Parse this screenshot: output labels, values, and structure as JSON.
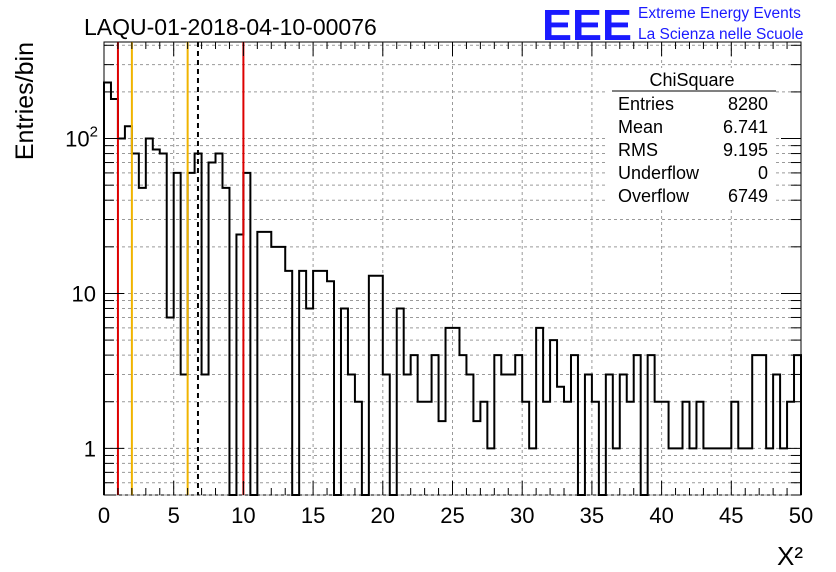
{
  "chart_data": {
    "type": "bar",
    "title": "LAQU-01-2018-04-10-00076",
    "xlabel": "X²",
    "ylabel": "Entries/bin",
    "xlim": [
      0,
      50
    ],
    "ylim": [
      0.5,
      420
    ],
    "y_scale": "log",
    "grid": true,
    "bin_width": 0.5,
    "x_ticks": [
      "0",
      "5",
      "10",
      "15",
      "20",
      "25",
      "30",
      "35",
      "40",
      "45",
      "50"
    ],
    "y_ticks": [
      {
        "value": 1,
        "label": "1"
      },
      {
        "value": 10,
        "label": "10"
      },
      {
        "value": 100,
        "label": "10",
        "sup": "2"
      }
    ],
    "values": [
      230,
      180,
      100,
      120,
      80,
      48,
      100,
      85,
      80,
      7,
      60,
      3,
      60,
      80,
      3,
      70,
      80,
      48,
      0,
      24,
      60,
      0,
      25,
      25,
      20,
      20,
      14,
      0,
      14,
      8,
      14,
      14,
      12,
      0,
      8,
      3,
      2,
      0,
      13,
      13,
      3,
      0,
      8,
      3,
      4,
      2,
      2,
      4,
      1.5,
      6,
      6,
      4,
      3,
      1.5,
      2,
      1,
      4,
      3,
      3,
      4,
      2,
      1,
      6,
      2,
      5,
      2.5,
      2,
      4,
      0,
      3,
      2,
      0,
      3,
      1,
      3,
      2,
      4,
      0,
      4,
      2,
      2,
      1,
      1,
      2,
      1,
      2,
      1,
      1,
      1,
      1,
      2,
      1,
      1,
      4,
      4,
      1,
      3,
      1,
      2,
      4
    ],
    "vertical_lines": [
      {
        "x": 1.0,
        "color": "#dd0000",
        "style": "solid"
      },
      {
        "x": 2.0,
        "color": "#f0b400",
        "style": "solid"
      },
      {
        "x": 6.0,
        "color": "#f0b400",
        "style": "solid"
      },
      {
        "x": 6.741,
        "color": "#000000",
        "style": "dashed"
      },
      {
        "x": 10.0,
        "color": "#dd0000",
        "style": "solid"
      }
    ],
    "stats_box": {
      "title": "ChiSquare",
      "rows": [
        {
          "label": "Entries",
          "value": "8280"
        },
        {
          "label": "Mean",
          "value": "6.741"
        },
        {
          "label": "RMS",
          "value": "9.195"
        },
        {
          "label": "Underflow",
          "value": "0"
        },
        {
          "label": "Overflow",
          "value": "6749"
        }
      ]
    }
  },
  "logo": {
    "mark": "EEE",
    "line1": "Extreme Energy Events",
    "line2": "La Scienza nelle Scuole",
    "color": "#1a1aff"
  }
}
